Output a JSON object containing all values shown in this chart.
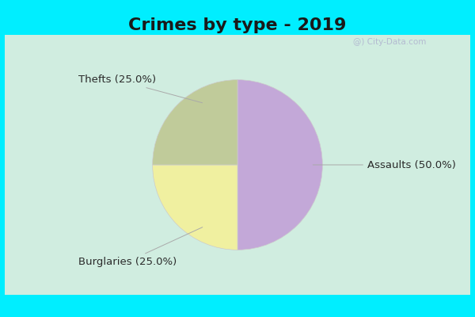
{
  "title": "Crimes by type - 2019",
  "slices": [
    {
      "label": "Assaults (50.0%)",
      "value": 50.0,
      "color": "#C3A8D8"
    },
    {
      "label": "Thefts (25.0%)",
      "value": 25.0,
      "color": "#F0F0A0"
    },
    {
      "label": "Burglaries (25.0%)",
      "value": 25.0,
      "color": "#C0CB9A"
    }
  ],
  "bg_cyan": "#00EEFF",
  "bg_main": "#D0EDE0",
  "title_fontsize": 16,
  "label_fontsize": 9.5,
  "start_angle": 90,
  "watermark": "@) City-Data.com"
}
